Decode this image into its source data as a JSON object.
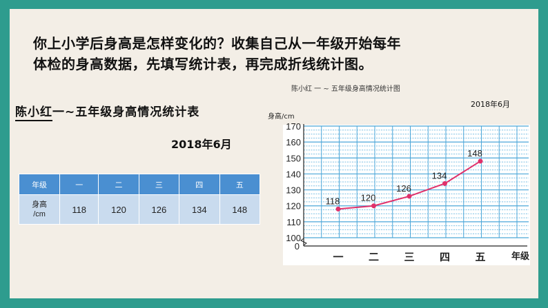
{
  "prompt": {
    "line1": "你上小学后身高是怎样变化的？收集自己从一年级开始每年",
    "line2": "体检的身高数据，先填写统计表，再完成折线统计图。"
  },
  "table": {
    "title_name": "陈小红",
    "title_rest": "一~五年级身高情况统计表",
    "date": "2018年6月",
    "row_headers": [
      "年级",
      "身高\n/cm"
    ],
    "grades": [
      "一",
      "二",
      "三",
      "四",
      "五"
    ],
    "heights": [
      "118",
      "120",
      "126",
      "134",
      "148"
    ]
  },
  "chart_caption": "陈小红 一 ~ 五年级身高情况统计图",
  "chart_data": {
    "type": "line",
    "title": "",
    "date": "2018年6月",
    "ylabel": "身高/cm",
    "xlabel": "年级",
    "categories": [
      "一",
      "二",
      "三",
      "四",
      "五"
    ],
    "values": [
      118,
      120,
      126,
      134,
      148
    ],
    "data_labels": [
      "118",
      "120",
      "126",
      "134",
      "148"
    ],
    "y_ticks": [
      "100",
      "110",
      "120",
      "130",
      "140",
      "150",
      "160",
      "170"
    ],
    "y_zero_label": "0",
    "ylim": [
      100,
      170
    ],
    "y_axis_break": true,
    "grid": true,
    "colors": {
      "line": "#e0306a",
      "grid_major": "#4aa6d8",
      "grid_minor": "#7cc0e4",
      "background": "#ffffff"
    }
  }
}
